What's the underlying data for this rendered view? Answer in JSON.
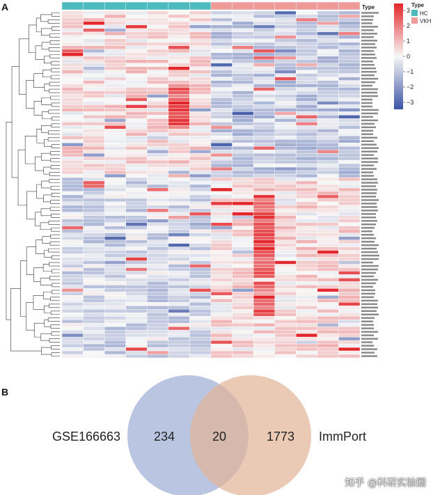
{
  "panels": {
    "a": "A",
    "b": "B"
  },
  "heatmap": {
    "type_header": "Type",
    "legend_title": "Type",
    "groups": [
      {
        "name": "HC",
        "color": "#4DBBBE"
      },
      {
        "name": "VKH",
        "color": "#EE9A99"
      }
    ],
    "colorbar_ticks": [
      "3",
      "2",
      "1",
      "0",
      "−1",
      "−2",
      "−3"
    ],
    "colors": {
      "high": "#E3262A",
      "mid": "#F7F7F7",
      "low": "#3A53A4"
    },
    "n_hc_cols": 7,
    "n_vkh_cols": 7
  },
  "venn": {
    "left_label": "GSE166663",
    "right_label": "ImmPort",
    "left_only": "234",
    "overlap": "20",
    "right_only": "1773",
    "left_color": "#A8B6DA",
    "right_color": "#E3B395"
  },
  "watermark": "知乎 @科研实验圈"
}
